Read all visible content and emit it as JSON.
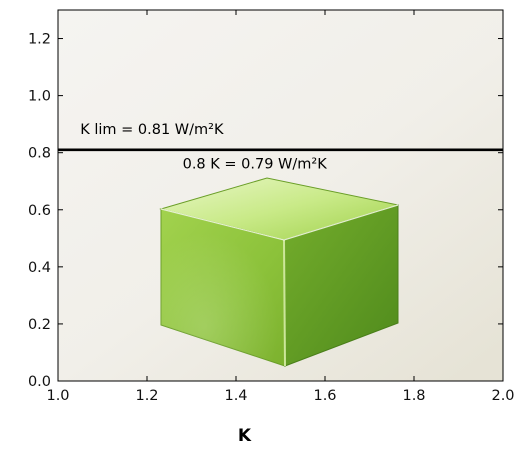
{
  "chart_data": {
    "type": "line",
    "title": "",
    "xlabel": "K",
    "ylabel": "",
    "xlim": [
      1.0,
      2.0
    ],
    "ylim": [
      0.0,
      1.3
    ],
    "x_ticks": [
      "1.0",
      "1.2",
      "1.4",
      "1.6",
      "1.8",
      "2.0"
    ],
    "y_ticks": [
      "0.0",
      "0.2",
      "0.4",
      "0.6",
      "0.8",
      "1.0",
      "1.2"
    ],
    "grid": false,
    "series": [
      {
        "name": "",
        "x": [
          1.0,
          2.0
        ],
        "y": [
          0.81,
          0.81
        ],
        "color": "#000000"
      }
    ],
    "annotations": [
      {
        "text": "K lim = 0.81 W/m²K",
        "x": 1.05,
        "y": 0.865
      },
      {
        "text": "0.8 K = 0.79 W/m²K",
        "x": 1.28,
        "y": 0.745
      }
    ],
    "cube_icon": "green-cube-icon"
  }
}
